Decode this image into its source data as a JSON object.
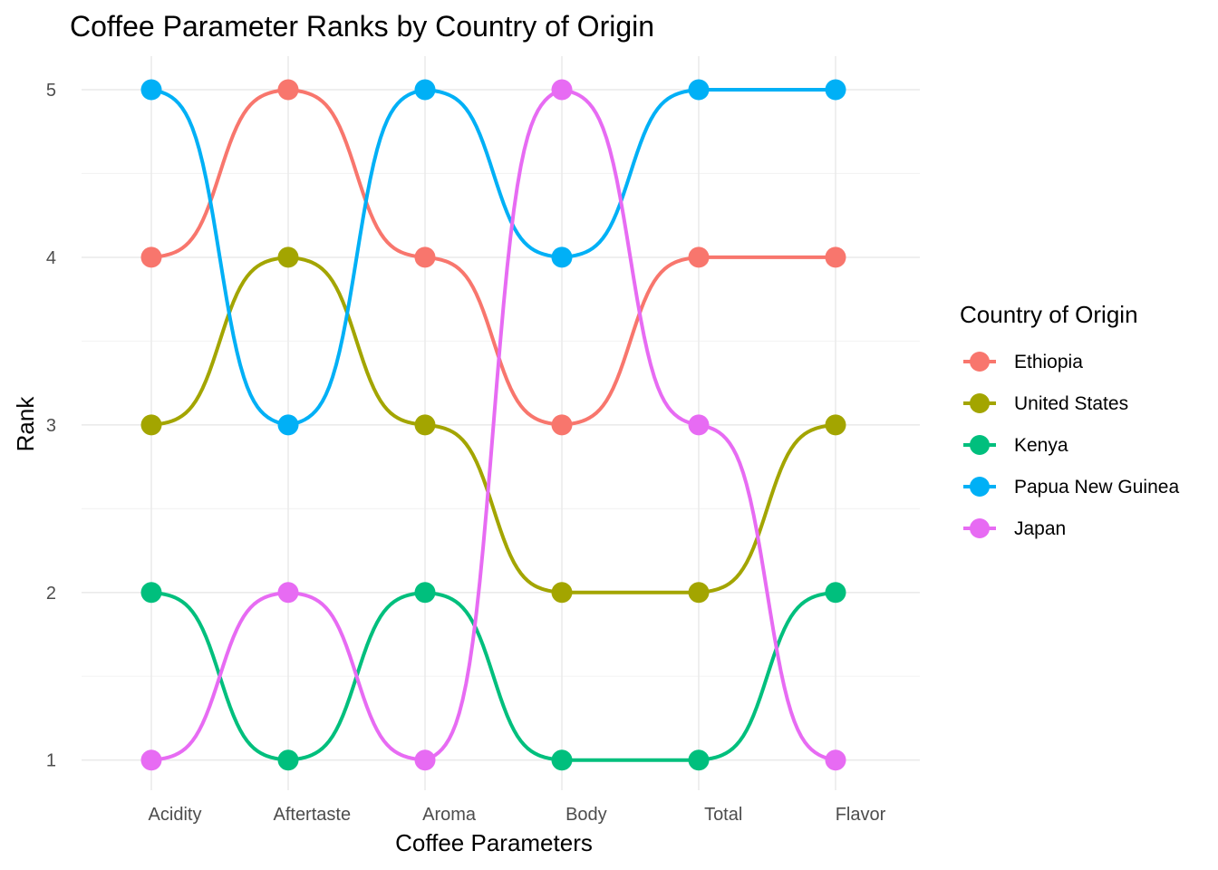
{
  "chart_data": {
    "type": "line",
    "title": "Coffee Parameter Ranks by Country of Origin",
    "xlabel": "Coffee Parameters",
    "ylabel": "Rank",
    "categories": [
      "Acidity",
      "Aftertaste",
      "Aroma",
      "Body",
      "Total",
      "Flavor"
    ],
    "yticks": [
      1,
      2,
      3,
      4,
      5
    ],
    "ylim": [
      0.82,
      5.2
    ],
    "grid": true,
    "legend": {
      "title": "Country of Origin",
      "position": "right"
    },
    "series": [
      {
        "name": "Ethiopia",
        "color": "#F8766D",
        "values": [
          4,
          5,
          4,
          3,
          4,
          4
        ]
      },
      {
        "name": "United States",
        "color": "#A3A500",
        "values": [
          3,
          4,
          3,
          2,
          2,
          3
        ]
      },
      {
        "name": "Kenya",
        "color": "#00BF7D",
        "values": [
          2,
          1,
          2,
          1,
          1,
          2
        ]
      },
      {
        "name": "Papua New Guinea",
        "color": "#00B0F6",
        "values": [
          5,
          3,
          5,
          4,
          5,
          5
        ]
      },
      {
        "name": "Japan",
        "color": "#E76BF3",
        "values": [
          1,
          2,
          1,
          5,
          3,
          1
        ]
      }
    ]
  }
}
